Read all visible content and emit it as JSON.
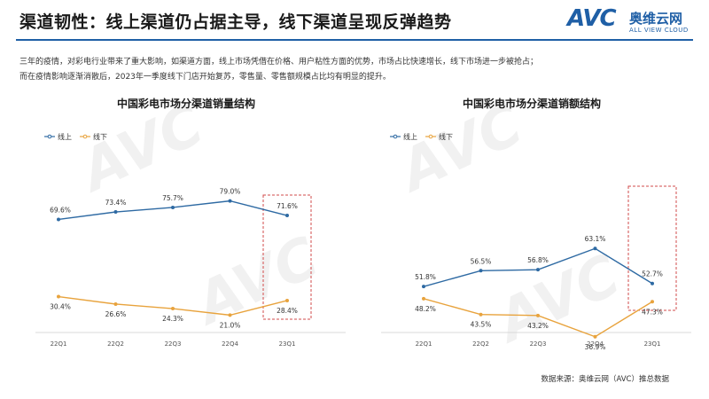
{
  "header": {
    "title": "渠道韧性：线上渠道仍占据主导，线下渠道呈现反弹趋势",
    "logo": {
      "mark": "AVC",
      "name_cn": "奥维云网",
      "name_en": "ALL VIEW CLOUD"
    }
  },
  "intro": [
    "三年的疫情，对彩电行业带来了重大影响，如渠道方面，线上市场凭借在价格、用户粘性方面的优势，市场占比快速增长，线下市场进一步被抢占；",
    "而在疫情影响逐渐消散后，2023年一季度线下门店开始复苏，零售量、零售额规模占比均有明显的提升。"
  ],
  "source": "数据来源：奥维云网（AVC）推总数据",
  "colors": {
    "online": "#2e6aa3",
    "offline": "#e8a33d",
    "highlight": "#d24b4b",
    "accent": "#1f5fa6"
  },
  "chart_data": [
    {
      "type": "line",
      "title": "中国彩电市场分渠道销量结构",
      "categories": [
        "22Q1",
        "22Q2",
        "22Q3",
        "22Q4",
        "23Q1"
      ],
      "series": [
        {
          "name": "线上",
          "values": [
            69.6,
            73.4,
            75.7,
            79.0,
            71.6
          ],
          "labels": [
            "69.6%",
            "73.4%",
            "75.7%",
            "79.0%",
            "71.6%"
          ]
        },
        {
          "name": "线下",
          "values": [
            30.4,
            26.6,
            24.3,
            21.0,
            28.4
          ],
          "labels": [
            "30.4%",
            "26.6%",
            "24.3%",
            "21.0%",
            "28.4%"
          ]
        }
      ],
      "ylim": [
        0,
        100
      ],
      "grid": false,
      "legend": "top-left",
      "highlight_category": "23Q1"
    },
    {
      "type": "line",
      "title": "中国彩电市场分渠道销额结构",
      "categories": [
        "22Q1",
        "22Q2",
        "22Q3",
        "22Q4",
        "23Q1"
      ],
      "series": [
        {
          "name": "线上",
          "values": [
            51.8,
            56.5,
            56.8,
            63.1,
            52.7
          ],
          "labels": [
            "51.8%",
            "56.5%",
            "56.8%",
            "63.1%",
            "52.7%"
          ]
        },
        {
          "name": "线下",
          "values": [
            48.2,
            43.5,
            43.2,
            36.9,
            47.3
          ],
          "labels": [
            "48.2%",
            "43.5%",
            "43.2%",
            "36.9%",
            "47.3%"
          ]
        }
      ],
      "ylim": [
        0,
        100
      ],
      "grid": false,
      "legend": "top-left",
      "highlight_category": "23Q1"
    }
  ]
}
